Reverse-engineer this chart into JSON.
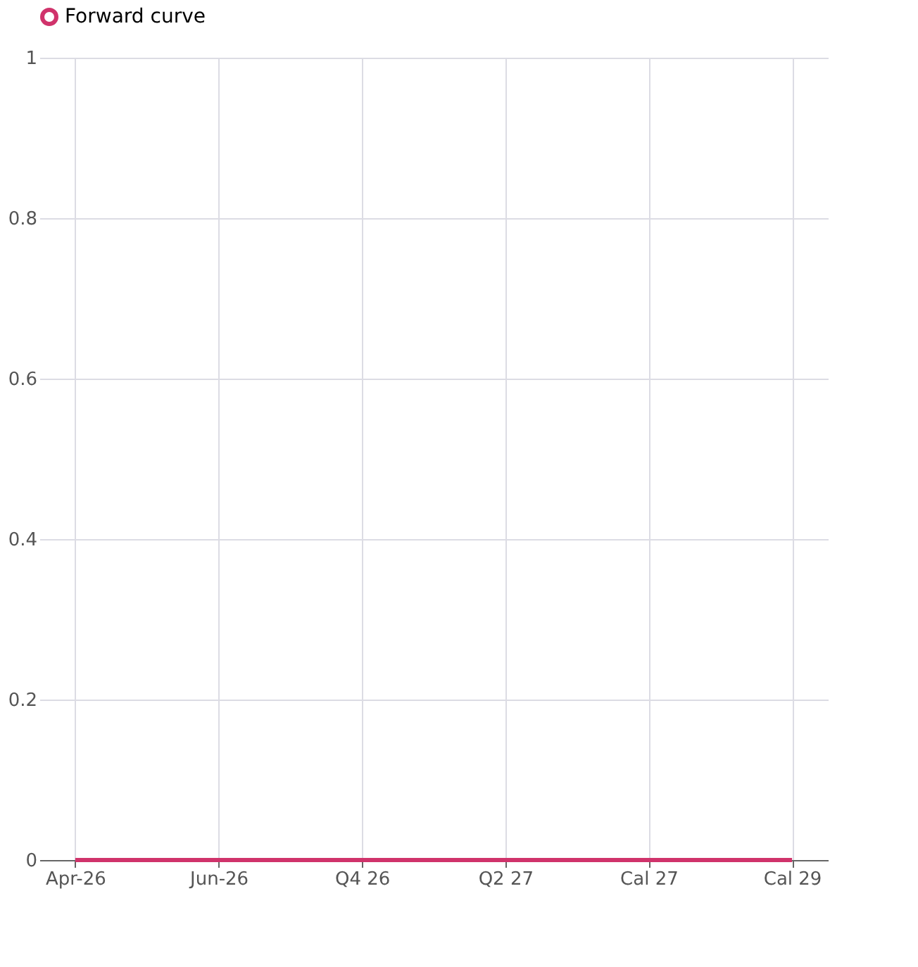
{
  "chart_data": {
    "type": "line",
    "categories": [
      "Apr-26",
      null,
      "Jun-26",
      null,
      "Q4 26",
      null,
      "Q2 27",
      null,
      "Cal 27",
      null,
      "Cal 29"
    ],
    "series": [
      {
        "name": "Forward curve",
        "color": "#d0336b",
        "values": [
          0,
          0,
          0,
          0,
          0,
          0,
          0,
          0,
          0,
          0,
          0
        ]
      }
    ],
    "ylim": [
      0,
      1
    ],
    "yticks": [
      0,
      0.2,
      0.4,
      0.6,
      0.8,
      1
    ],
    "grid": true,
    "legend": "top",
    "marker": "none",
    "line_style": "solid"
  }
}
